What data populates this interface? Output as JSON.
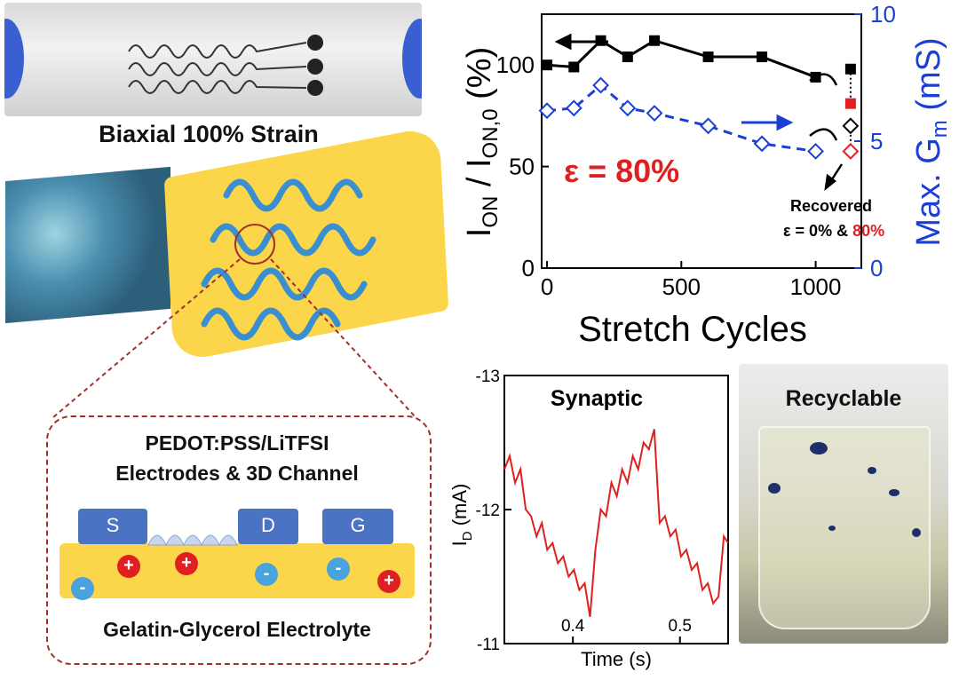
{
  "labels": {
    "strain": "Biaxial 100% Strain",
    "pedot_line1": "PEDOT:PSS/LiTFSI",
    "pedot_line2": "Electrodes & 3D Channel",
    "electrolyte": "Gelatin-Glycerol Electrolyte",
    "pad_s": "S",
    "pad_d": "D",
    "pad_g": "G",
    "recyclable": "Recyclable",
    "ion_plus": "+",
    "ion_minus": "-"
  },
  "chart_data": [
    {
      "type": "line",
      "xlabel": "Stretch Cycles",
      "ylabel_left": "ION / ION,0 (%)",
      "ylabel_right": "Max. Gm (mS)",
      "xlim": [
        -20,
        1170
      ],
      "ylim_left": [
        0,
        125
      ],
      "ylim_right": [
        0,
        10
      ],
      "x_ticks": [
        0,
        500,
        1000
      ],
      "y_ticks_left": [
        0,
        50,
        100
      ],
      "y_ticks_right": [
        0,
        5,
        10
      ],
      "annotation": "ε = 80%",
      "recovered_line1": "Recovered",
      "recovered_line2_prefix": "ε = 0% & ",
      "recovered_line2_highlight": "80%",
      "series": [
        {
          "axis": "left",
          "marker": "filled-square",
          "color": "#000000",
          "x": [
            0,
            100,
            200,
            300,
            400,
            600,
            800,
            1000
          ],
          "y": [
            100,
            99,
            112,
            104,
            112,
            104,
            104,
            94
          ]
        },
        {
          "axis": "right",
          "marker": "open-diamond",
          "color": "#1a3fd6",
          "dashed": true,
          "x": [
            0,
            100,
            200,
            300,
            400,
            600,
            800,
            1000
          ],
          "y": [
            6.2,
            6.3,
            7.2,
            6.3,
            6.1,
            5.6,
            4.9,
            4.6
          ]
        }
      ],
      "recovered_points": [
        {
          "x": 1130,
          "y": 98,
          "axis": "left",
          "marker": "filled-square",
          "color": "#000000"
        },
        {
          "x": 1130,
          "y": 81,
          "axis": "left",
          "marker": "filled-square",
          "color": "#e02020"
        },
        {
          "x": 1130,
          "y": 5.6,
          "axis": "right",
          "marker": "open-diamond",
          "color": "#000000"
        },
        {
          "x": 1130,
          "y": 4.6,
          "axis": "right",
          "marker": "open-diamond",
          "color": "#e02020"
        }
      ],
      "colors": {
        "left_axis": "#000000",
        "right_axis": "#1a3fd6",
        "annotation": "#e02020"
      }
    },
    {
      "type": "line",
      "title": "Synaptic",
      "xlabel": "Time (s)",
      "ylabel": "ID (mA)",
      "xlim": [
        0.336,
        0.545
      ],
      "ylim": [
        -13,
        -11
      ],
      "x_ticks": [
        0.4,
        0.5
      ],
      "y_ticks": [
        -13,
        -12,
        -11
      ],
      "color": "#e02020",
      "series": [
        {
          "name": "",
          "x": [
            0.336,
            0.341,
            0.346,
            0.351,
            0.356,
            0.361,
            0.366,
            0.371,
            0.376,
            0.381,
            0.386,
            0.391,
            0.396,
            0.401,
            0.406,
            0.411,
            0.416,
            0.421,
            0.426,
            0.431,
            0.436,
            0.441,
            0.446,
            0.451,
            0.456,
            0.461,
            0.466,
            0.471,
            0.476,
            0.481,
            0.486,
            0.491,
            0.496,
            0.501,
            0.506,
            0.511,
            0.516,
            0.521,
            0.526,
            0.531,
            0.536,
            0.541,
            0.545
          ],
          "y": [
            -12.3,
            -12.4,
            -12.2,
            -12.3,
            -12.0,
            -11.95,
            -11.8,
            -11.9,
            -11.7,
            -11.75,
            -11.6,
            -11.65,
            -11.5,
            -11.55,
            -11.4,
            -11.45,
            -11.2,
            -11.7,
            -12.0,
            -11.95,
            -12.2,
            -12.1,
            -12.3,
            -12.2,
            -12.4,
            -12.3,
            -12.5,
            -12.45,
            -12.6,
            -11.9,
            -11.95,
            -11.8,
            -11.85,
            -11.65,
            -11.7,
            -11.55,
            -11.6,
            -11.4,
            -11.45,
            -11.3,
            -11.35,
            -11.8,
            -11.75
          ]
        }
      ]
    }
  ]
}
